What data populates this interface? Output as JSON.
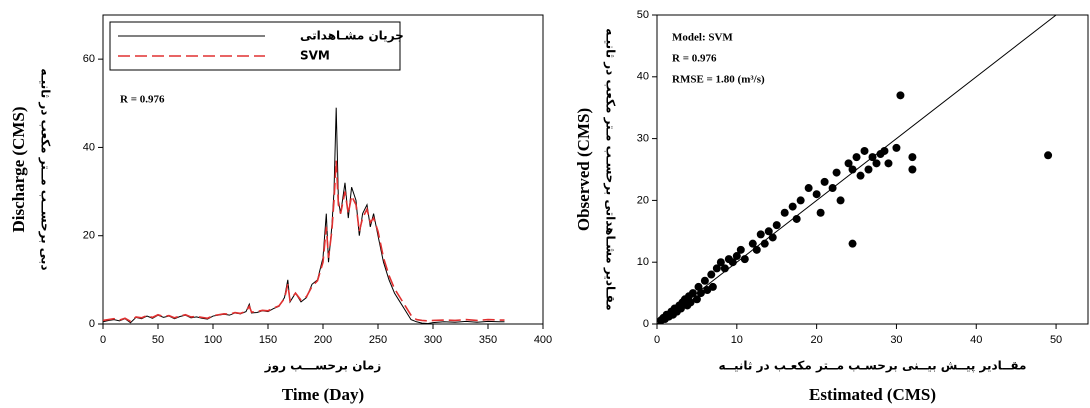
{
  "chart_data": [
    {
      "type": "line",
      "x_label": "Time (Day)",
      "x_label_fa": "زمان برحســـب روز",
      "y_label": "Discharge (CMS)",
      "y_label_fa": "دبی برحســب مــتر مکعب در ثانیـه",
      "annotations": [
        "R = 0.976"
      ],
      "xlim": [
        0,
        400
      ],
      "xticks": [
        0,
        50,
        100,
        150,
        200,
        250,
        300,
        350,
        400
      ],
      "ylim": [
        0,
        70
      ],
      "yticks": [
        0,
        20,
        40,
        60
      ],
      "legend": "top-left",
      "x": [
        0,
        5,
        10,
        15,
        20,
        25,
        30,
        35,
        40,
        45,
        50,
        55,
        60,
        65,
        70,
        75,
        80,
        85,
        90,
        95,
        100,
        105,
        110,
        115,
        120,
        125,
        130,
        133,
        135,
        140,
        145,
        150,
        155,
        160,
        165,
        168,
        170,
        175,
        180,
        185,
        190,
        195,
        200,
        203,
        205,
        208,
        210,
        212,
        214,
        216,
        220,
        223,
        226,
        230,
        233,
        236,
        240,
        243,
        246,
        250,
        255,
        260,
        265,
        270,
        275,
        280,
        285,
        290,
        295,
        300,
        310,
        320,
        330,
        340,
        350,
        360,
        365
      ],
      "series": [
        {
          "name": "جریان مشـاهداتی",
          "color": "#000000",
          "dash": false,
          "values": [
            0.5,
            0.8,
            1,
            0.7,
            1.2,
            0.3,
            1.5,
            1.2,
            1.8,
            1.3,
            2,
            1.5,
            1.8,
            1.2,
            1.7,
            2,
            1.4,
            1.6,
            1.3,
            1.1,
            1.8,
            2,
            2.2,
            2,
            2.5,
            2.3,
            2.8,
            4.5,
            2.5,
            2.6,
            3,
            2.8,
            3.5,
            4,
            6,
            10,
            5,
            7,
            5,
            6,
            9,
            10,
            15,
            25,
            14,
            22,
            30,
            49,
            28,
            25,
            32,
            24,
            31,
            28,
            20,
            25,
            27,
            22,
            25,
            20,
            14,
            10,
            7,
            5,
            3,
            1,
            0.5,
            0.2,
            0.1,
            0.3,
            0.5,
            0.4,
            0.6,
            0.4,
            0.6,
            0.5,
            0.5
          ]
        },
        {
          "name": "SVM",
          "color": "#e03030",
          "dash": true,
          "values": [
            0.8,
            1,
            1.2,
            0.9,
            1.3,
            0.6,
            1.6,
            1.4,
            1.9,
            1.5,
            2.1,
            1.7,
            1.9,
            1.4,
            1.8,
            2.1,
            1.6,
            1.7,
            1.5,
            1.3,
            1.9,
            2.1,
            2.3,
            2.2,
            2.6,
            2.4,
            2.9,
            4,
            2.7,
            2.8,
            3.1,
            3,
            3.6,
            4.1,
            5.8,
            9,
            5.3,
            7,
            5.4,
            6.2,
            8.5,
            9.8,
            14,
            22,
            15,
            21,
            28,
            37,
            27,
            25,
            30,
            25,
            29,
            27,
            21,
            24,
            26,
            23,
            24,
            21,
            15,
            11,
            8,
            6,
            4,
            2,
            1,
            0.8,
            0.7,
            0.8,
            0.9,
            0.8,
            1,
            0.8,
            1,
            0.9,
            0.9
          ]
        }
      ]
    },
    {
      "type": "scatter",
      "x_label": "Estimated (CMS)",
      "x_label_fa": "مقــادیر پیــش بیــنی برحسـب مــتر مکعـب در ثانیــه",
      "y_label": "Observed (CMS)",
      "y_label_fa": "مقـادیر مشـاهداتی برحسـب مـتر مکعب در ثانیـه",
      "annotations": [
        "Model: SVM",
        "R = 0.976",
        "RMSE = 1.80 (m³/s)"
      ],
      "xlim": [
        0,
        54
      ],
      "xticks": [
        0,
        10,
        20,
        30,
        40,
        50
      ],
      "ylim": [
        0,
        50
      ],
      "yticks": [
        0,
        10,
        20,
        30,
        40,
        50
      ],
      "color": "#000000",
      "reference_line": true,
      "x": [
        0.5,
        0.8,
        1,
        1.2,
        1.5,
        1.8,
        2,
        2.2,
        2.5,
        2.8,
        3,
        3.2,
        3.5,
        3.8,
        4,
        4.2,
        4.5,
        5,
        5.2,
        5.5,
        6,
        6.3,
        6.8,
        7,
        7.5,
        8,
        8.5,
        9,
        9.5,
        10,
        10.5,
        11,
        12,
        12.5,
        13,
        13.5,
        14,
        14.5,
        15,
        16,
        17,
        17.5,
        18,
        19,
        20,
        20.5,
        21,
        22,
        22.5,
        23,
        24,
        24.5,
        24.5,
        25,
        25.5,
        26,
        26.5,
        27,
        27.5,
        28,
        28.5,
        29,
        30,
        30.5,
        32,
        32,
        49
      ],
      "values": [
        0.6,
        1,
        0.8,
        1.5,
        1.2,
        2,
        1.5,
        2.5,
        2,
        3,
        2.5,
        3.5,
        4,
        3,
        4.5,
        3.5,
        5,
        4,
        6,
        5,
        7,
        5.5,
        8,
        6,
        9,
        10,
        9,
        10.5,
        10,
        11,
        12,
        10.5,
        13,
        12,
        14.5,
        13,
        15,
        14,
        16,
        18,
        19,
        17,
        20,
        22,
        21,
        18,
        23,
        22,
        24.5,
        20,
        26,
        13,
        25,
        27,
        24,
        28,
        25,
        27,
        26,
        27.5,
        28,
        26,
        28.5,
        37,
        27,
        25,
        27.3
      ]
    }
  ]
}
